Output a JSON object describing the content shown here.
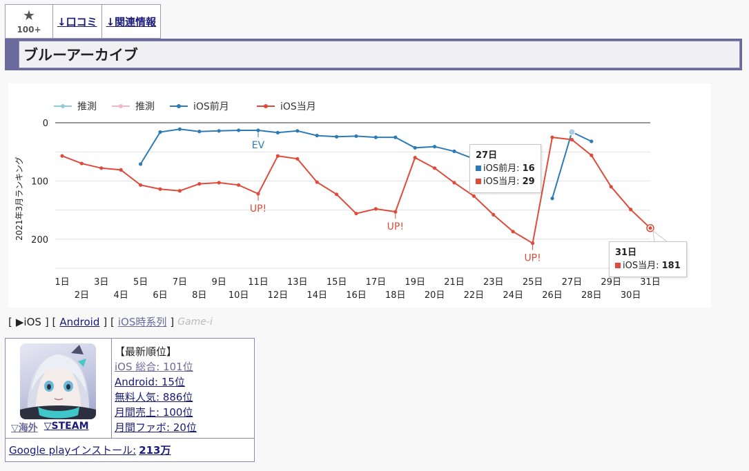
{
  "tabs": {
    "fav_icon": "star-icon",
    "fav_count": "100+",
    "reviews": "↓口コミ",
    "related": "↓関連情報"
  },
  "title": "ブルーアーカイブ",
  "chart_data": {
    "type": "line",
    "ylabel": "2021年3月ランキング",
    "y_reversed": true,
    "ylim": [
      0,
      250
    ],
    "yticks": [
      0,
      100,
      200
    ],
    "categories": [
      "1日",
      "2日",
      "3日",
      "4日",
      "5日",
      "6日",
      "7日",
      "8日",
      "9日",
      "10日",
      "11日",
      "12日",
      "13日",
      "14日",
      "15日",
      "16日",
      "17日",
      "18日",
      "19日",
      "20日",
      "21日",
      "22日",
      "23日",
      "24日",
      "25日",
      "26日",
      "27日",
      "28日",
      "29日",
      "30日",
      "31日"
    ],
    "legend": [
      {
        "name": "推測",
        "color": "#8ecae0"
      },
      {
        "name": "推測",
        "color": "#f5b6c8"
      },
      {
        "name": "iOS前月",
        "color": "#2c7bb6"
      },
      {
        "name": "iOS当月",
        "color": "#e04a3a"
      }
    ],
    "series": [
      {
        "name": "iOS前月",
        "color": "#2c7bb6",
        "values": [
          null,
          null,
          null,
          null,
          71,
          16,
          11,
          15,
          14,
          13,
          13,
          17,
          14,
          22,
          24,
          23,
          25,
          25,
          43,
          41,
          49,
          62,
          null,
          null,
          null,
          130,
          16,
          32,
          null,
          null,
          null
        ]
      },
      {
        "name": "iOS当月",
        "color": "#e04a3a",
        "values": [
          57,
          70,
          78,
          81,
          107,
          114,
          117,
          105,
          103,
          107,
          122,
          57,
          62,
          102,
          123,
          156,
          148,
          153,
          60,
          78,
          103,
          126,
          158,
          187,
          207,
          25,
          29,
          56,
          110,
          149,
          181
        ]
      }
    ],
    "annotations": [
      {
        "series": "iOS前月",
        "x": "11日",
        "text": "EV",
        "pos": "below"
      },
      {
        "series": "iOS当月",
        "x": "11日",
        "text": "UP!",
        "pos": "below"
      },
      {
        "series": "iOS当月",
        "x": "18日",
        "text": "UP!",
        "pos": "below"
      },
      {
        "series": "iOS当月",
        "x": "25日",
        "text": "UP!",
        "pos": "below"
      }
    ],
    "tooltips": [
      {
        "title": "27日",
        "rows": [
          {
            "label": "iOS前月",
            "value": "16",
            "color": "#2c7bb6"
          },
          {
            "label": "iOS当月",
            "value": "29",
            "color": "#e04a3a"
          }
        ]
      },
      {
        "title": "31日",
        "rows": [
          {
            "label": "iOS当月",
            "value": "181",
            "color": "#e04a3a"
          }
        ]
      }
    ]
  },
  "platform": {
    "open": "[",
    "current": "▶iOS",
    "sep1": "] [",
    "android": "Android",
    "sep2": "] [",
    "timeseries": "iOS時系列",
    "close": "]",
    "ghost": "Game-i"
  },
  "info": {
    "avatar_icon": "app-avatar-icon",
    "overseas": "▽海外",
    "steam": "▽STEAM",
    "header": "【最新順位】",
    "rankings": [
      "iOS 総合: 101位",
      "Android: 15位",
      "無料人気: 886位",
      "月間売上: 100位",
      "月間ファボ: 20位"
    ],
    "installs_label": "Google playインストール:",
    "installs_value": "213万"
  }
}
